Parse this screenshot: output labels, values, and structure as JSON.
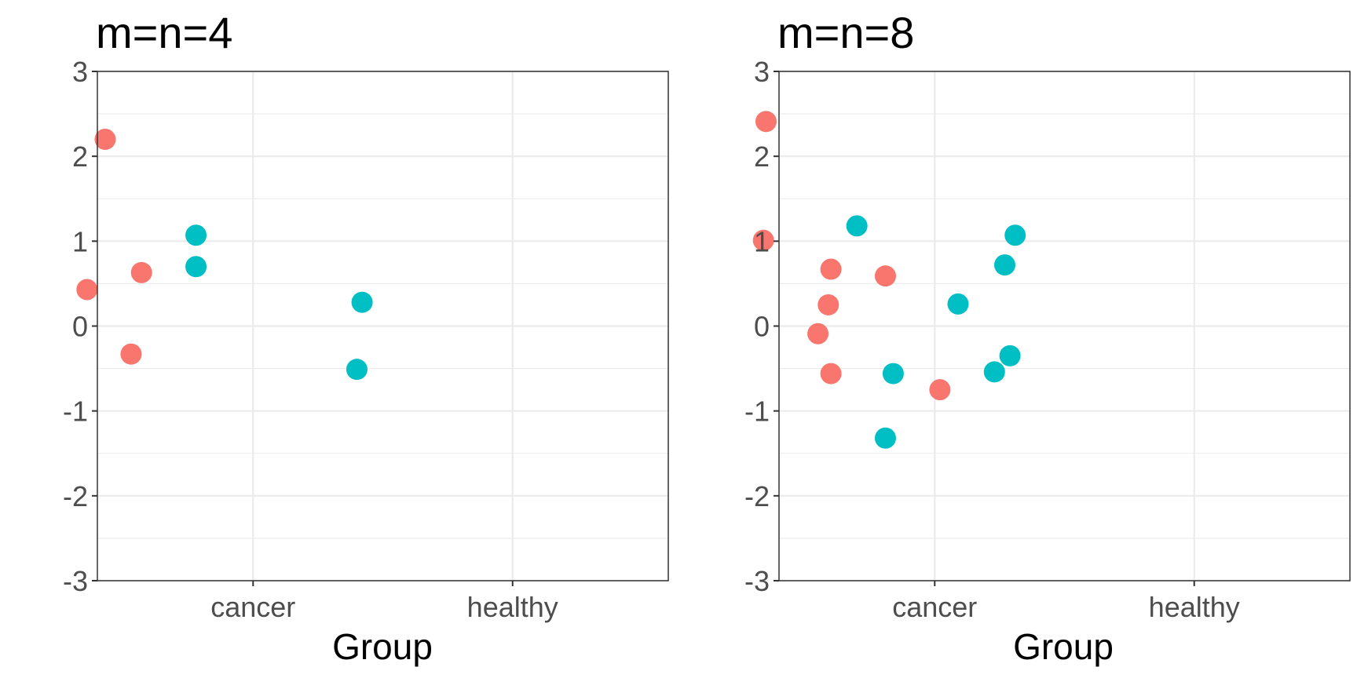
{
  "chart_data": [
    {
      "type": "scatter",
      "title": "m=n=4",
      "xlabel": "Group",
      "ylabel": "",
      "categories": [
        "cancer",
        "healthy"
      ],
      "ylim": [
        -3,
        3
      ],
      "yticks": [
        "3",
        "2",
        "1",
        "0",
        "-1",
        "-2",
        "-3"
      ],
      "grid": true,
      "legend": "none",
      "colors": {
        "cancer": "#F8766D",
        "healthy": "#00BFC4"
      },
      "series": [
        {
          "category": "cancer",
          "points": [
            {
              "x": 0.43,
              "y": 2.2
            },
            {
              "x": 0.36,
              "y": 0.43
            },
            {
              "x": 0.57,
              "y": 0.63
            },
            {
              "x": 0.53,
              "y": -0.33
            }
          ]
        },
        {
          "category": "healthy",
          "points": [
            {
              "x": 0.78,
              "y": 1.07
            },
            {
              "x": 0.78,
              "y": 0.7
            },
            {
              "x": 1.42,
              "y": 0.28
            },
            {
              "x": 1.4,
              "y": -0.51
            }
          ]
        }
      ]
    },
    {
      "type": "scatter",
      "title": "m=n=8",
      "xlabel": "Group",
      "ylabel": "",
      "categories": [
        "cancer",
        "healthy"
      ],
      "ylim": [
        -3,
        3
      ],
      "yticks": [
        "3",
        "2",
        "1",
        "0",
        "-1",
        "-2",
        "-3"
      ],
      "grid": true,
      "legend": "none",
      "colors": {
        "cancer": "#F8766D",
        "healthy": "#00BFC4"
      },
      "series": [
        {
          "category": "cancer",
          "points": [
            {
              "x": 0.35,
              "y": 2.41
            },
            {
              "x": 0.34,
              "y": 1.01
            },
            {
              "x": 0.6,
              "y": 0.67
            },
            {
              "x": 0.59,
              "y": 0.25
            },
            {
              "x": 0.55,
              "y": -0.09
            },
            {
              "x": 0.6,
              "y": -0.56
            },
            {
              "x": 0.81,
              "y": 0.59
            },
            {
              "x": 1.02,
              "y": -0.75
            }
          ]
        },
        {
          "category": "healthy",
          "points": [
            {
              "x": 0.7,
              "y": 1.18
            },
            {
              "x": 0.84,
              "y": -0.56
            },
            {
              "x": 0.81,
              "y": -1.32
            },
            {
              "x": 1.09,
              "y": 0.26
            },
            {
              "x": 1.27,
              "y": 0.72
            },
            {
              "x": 1.31,
              "y": 1.07
            },
            {
              "x": 1.23,
              "y": -0.54
            },
            {
              "x": 1.29,
              "y": -0.35
            }
          ]
        }
      ]
    }
  ]
}
